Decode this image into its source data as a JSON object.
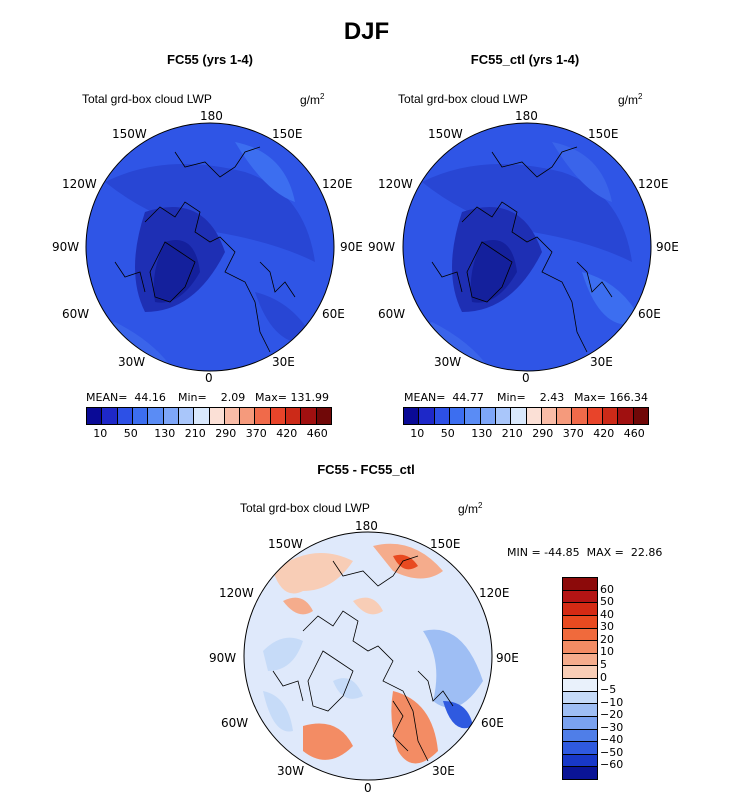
{
  "page": {
    "title": "DJF"
  },
  "panels": [
    {
      "id": "fc55",
      "title": "FC55 (yrs 1-4)",
      "subtitle": "Total grd-box cloud LWP",
      "unit": "g/m",
      "unit_exp": "2",
      "stats": {
        "mean": "MEAN=  44.16",
        "min": "Min=    2.09",
        "max": "Max= 131.99"
      },
      "lon_labels": {
        "n": "180",
        "s": "0",
        "w": "90W",
        "e": "90E",
        "nw1": "150W",
        "nw2": "120W",
        "sw1": "60W",
        "sw2": "30W",
        "ne1": "150E",
        "ne2": "120E",
        "se1": "60E",
        "se2": "30E"
      }
    },
    {
      "id": "fc55_ctl",
      "title": "FC55_ctl (yrs 1-4)",
      "subtitle": "Total grd-box cloud LWP",
      "unit": "g/m",
      "unit_exp": "2",
      "stats": {
        "mean": "MEAN=  44.77",
        "min": "Min=    2.43",
        "max": "Max= 166.34"
      },
      "lon_labels": {
        "n": "180",
        "s": "0",
        "w": "90W",
        "e": "90E",
        "nw1": "150W",
        "nw2": "120W",
        "sw1": "60W",
        "sw2": "30W",
        "ne1": "150E",
        "ne2": "120E",
        "se1": "60E",
        "se2": "30E"
      }
    }
  ],
  "abs_colorbar": {
    "colors": [
      "#0a0a96",
      "#1e28c8",
      "#2d50e6",
      "#3c6ef0",
      "#5a8cf5",
      "#7ea6f8",
      "#a9c6fa",
      "#d9e8fc",
      "#fbe0d6",
      "#f9bca7",
      "#f59a7c",
      "#f06a4a",
      "#e8442a",
      "#cc2a18",
      "#a01010",
      "#700808"
    ],
    "labels": [
      "10",
      "50",
      "130",
      "210",
      "290",
      "370",
      "420",
      "460"
    ]
  },
  "diff_panel": {
    "title": "FC55 - FC55_ctl",
    "subtitle": "Total grd-box cloud LWP",
    "unit": "g/m",
    "unit_exp": "2",
    "minmax": "MIN = -44.85  MAX =  22.86",
    "lon_labels": {
      "n": "180",
      "s": "0",
      "w": "90W",
      "e": "90E",
      "nw1": "150W",
      "nw2": "120W",
      "sw1": "60W",
      "sw2": "30W",
      "ne1": "150E",
      "ne2": "120E",
      "se1": "60E",
      "se2": "30E"
    }
  },
  "diff_colorbar": {
    "colors": [
      "#8c0a0a",
      "#b41414",
      "#d42a14",
      "#e84a20",
      "#f06a3c",
      "#f38c64",
      "#f5ac8c",
      "#f8cdb6",
      "#e9f1fb",
      "#c6dbf8",
      "#9ebef4",
      "#7aa2f0",
      "#4f7ee8",
      "#2f5ae0",
      "#1838c8",
      "#0a1496"
    ],
    "labels": [
      "60",
      "50",
      "40",
      "30",
      "20",
      "10",
      "5",
      "0",
      "−5",
      "−10",
      "−20",
      "−30",
      "−40",
      "−50",
      "−60"
    ]
  }
}
